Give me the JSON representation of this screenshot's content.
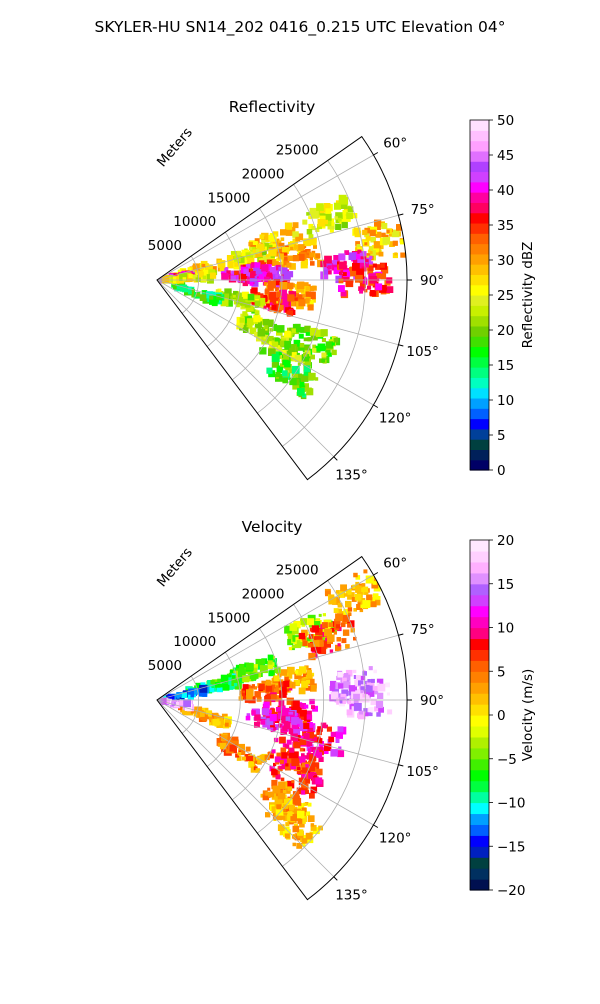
{
  "suptitle": "SKYLER-HU  SN14_202  0416_0.215 UTC Elevation 04°",
  "colors": {
    "reflectivity_scale": [
      "#000066",
      "#00205a",
      "#004040",
      "#00409a",
      "#0000ff",
      "#0060ff",
      "#00a0ff",
      "#00e0ff",
      "#00ffc0",
      "#00ff80",
      "#00ff40",
      "#00ff00",
      "#40e000",
      "#70d000",
      "#a0e000",
      "#c8f000",
      "#e0f020",
      "#ffff00",
      "#ffe000",
      "#ffc000",
      "#ffa000",
      "#ff8000",
      "#ff6000",
      "#ff3000",
      "#ff0000",
      "#ff0060",
      "#ff00a0",
      "#ff00ff",
      "#d040ff",
      "#b040ff",
      "#e070ff",
      "#ffa0ff",
      "#ffc0ff",
      "#ffe0ff"
    ],
    "velocity_scale": [
      "#001050",
      "#003060",
      "#004040",
      "#0020c0",
      "#0000ff",
      "#0060ff",
      "#00a0ff",
      "#00ffff",
      "#00ffa0",
      "#00ff40",
      "#00ff00",
      "#40f000",
      "#80f000",
      "#b0f000",
      "#e0ff00",
      "#ffff00",
      "#ffe000",
      "#ffc000",
      "#ffa000",
      "#ff8000",
      "#ff6000",
      "#ff3000",
      "#ff0000",
      "#ff0080",
      "#ff00c0",
      "#ff00ff",
      "#d040ff",
      "#b060ff",
      "#e090ff",
      "#ffb0ff",
      "#ffd0ff",
      "#ffe8ff"
    ]
  },
  "chart_data": [
    {
      "type": "heatmap",
      "projection": "polar-sector",
      "title": "Reflectivity",
      "radial_label": "Meters",
      "radial_ticks": [
        5000,
        10000,
        15000,
        20000,
        25000
      ],
      "radial_tick_labels": [
        "5000",
        "10000",
        "15000",
        "20000",
        "25000"
      ],
      "rmax": 30000,
      "theta_ticks_deg": [
        60,
        75,
        90,
        105,
        120,
        135
      ],
      "theta_tick_labels": [
        "60°",
        "75°",
        "90°",
        "105°",
        "120°",
        "135°"
      ],
      "theta_range_deg": [
        55,
        143
      ],
      "colorbar": {
        "label": "Reflectivity dBZ",
        "range": [
          0,
          50
        ],
        "ticks": [
          0,
          5,
          10,
          15,
          20,
          25,
          30,
          35,
          40,
          45,
          50
        ],
        "tick_labels": [
          "0",
          "5",
          "10",
          "15",
          "20",
          "25",
          "30",
          "35",
          "40",
          "45",
          "50"
        ]
      },
      "cells": [
        {
          "theta": 70,
          "r": 22000,
          "value": 24
        },
        {
          "theta": 72,
          "r": 15000,
          "value": 28
        },
        {
          "theta": 76,
          "r": 12000,
          "value": 24
        },
        {
          "theta": 80,
          "r": 17000,
          "value": 30
        },
        {
          "theta": 80,
          "r": 27000,
          "value": 28
        },
        {
          "theta": 85,
          "r": 11000,
          "value": 38
        },
        {
          "theta": 86,
          "r": 23000,
          "value": 40
        },
        {
          "theta": 88,
          "r": 13000,
          "value": 40
        },
        {
          "theta": 90,
          "r": 25000,
          "value": 36
        },
        {
          "theta": 96,
          "r": 16000,
          "value": 30
        },
        {
          "theta": 100,
          "r": 14000,
          "value": 35
        },
        {
          "theta": 104,
          "r": 10000,
          "value": 22
        },
        {
          "theta": 108,
          "r": 5000,
          "value": 16
        },
        {
          "theta": 112,
          "r": 20000,
          "value": 20
        },
        {
          "theta": 115,
          "r": 14000,
          "value": 22
        },
        {
          "theta": 120,
          "r": 18000,
          "value": 22
        },
        {
          "theta": 125,
          "r": 20000,
          "value": 18
        },
        {
          "theta": 76,
          "r": 5000,
          "value": 28
        },
        {
          "theta": 82,
          "r": 1500,
          "value": 40
        },
        {
          "theta": 86,
          "r": 4000,
          "value": 25
        }
      ]
    },
    {
      "type": "heatmap",
      "projection": "polar-sector",
      "title": "Velocity",
      "radial_label": "Meters",
      "radial_ticks": [
        5000,
        10000,
        15000,
        20000,
        25000
      ],
      "radial_tick_labels": [
        "5000",
        "10000",
        "15000",
        "20000",
        "25000"
      ],
      "rmax": 30000,
      "theta_ticks_deg": [
        60,
        75,
        90,
        105,
        120,
        135
      ],
      "theta_tick_labels": [
        "60°",
        "75°",
        "90°",
        "105°",
        "120°",
        "135°"
      ],
      "theta_range_deg": [
        55,
        143
      ],
      "colorbar": {
        "label": "Velocity (m/s)",
        "range": [
          -20,
          20
        ],
        "ticks": [
          -20,
          -15,
          -10,
          -5,
          0,
          5,
          10,
          15,
          20
        ],
        "tick_labels": [
          "−20",
          "−15",
          "−10",
          "−5",
          "0",
          "5",
          "10",
          "15",
          "20"
        ]
      },
      "cells": [
        {
          "theta": 62,
          "r": 27000,
          "value": 2
        },
        {
          "theta": 66,
          "r": 20000,
          "value": -3
        },
        {
          "theta": 70,
          "r": 22000,
          "value": 6
        },
        {
          "theta": 73,
          "r": 12000,
          "value": -5
        },
        {
          "theta": 76,
          "r": 7000,
          "value": -8
        },
        {
          "theta": 80,
          "r": 3000,
          "value": -13
        },
        {
          "theta": 82,
          "r": 16000,
          "value": 3
        },
        {
          "theta": 86,
          "r": 13000,
          "value": 6
        },
        {
          "theta": 86,
          "r": 24000,
          "value": 16
        },
        {
          "theta": 90,
          "r": 25000,
          "value": 16
        },
        {
          "theta": 95,
          "r": 16000,
          "value": 9
        },
        {
          "theta": 100,
          "r": 14000,
          "value": 11
        },
        {
          "theta": 103,
          "r": 20000,
          "value": 10
        },
        {
          "theta": 108,
          "r": 6000,
          "value": 3
        },
        {
          "theta": 112,
          "r": 18000,
          "value": 8
        },
        {
          "theta": 118,
          "r": 19000,
          "value": 8
        },
        {
          "theta": 122,
          "r": 12000,
          "value": 4
        },
        {
          "theta": 128,
          "r": 20000,
          "value": 3
        },
        {
          "theta": 132,
          "r": 22000,
          "value": 2
        },
        {
          "theta": 100,
          "r": 1500,
          "value": 16
        }
      ]
    }
  ]
}
